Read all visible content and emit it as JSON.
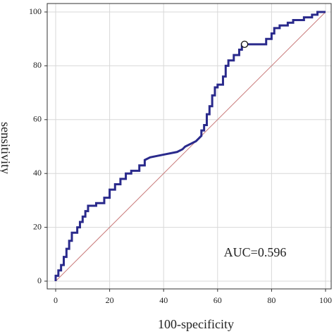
{
  "chart_data": {
    "type": "line",
    "xlabel": "100-specificity",
    "ylabel": "sensitivity",
    "annotation": "AUC=0.596",
    "color": "#2a2a8c",
    "reference_color": "#c97a7a",
    "grid": true,
    "xlim": [
      0,
      100
    ],
    "ylim": [
      0,
      100
    ],
    "xticks": [
      0,
      20,
      40,
      60,
      80,
      100
    ],
    "yticks": [
      0,
      20,
      40,
      60,
      80,
      100
    ],
    "x": [
      0,
      0,
      1,
      1,
      2,
      2,
      3,
      3,
      4,
      4,
      5,
      5,
      6,
      6,
      8,
      8,
      9,
      9,
      10,
      10,
      11,
      11,
      12,
      12,
      15,
      15,
      18,
      18,
      20,
      20,
      22,
      22,
      24,
      24,
      26,
      26,
      28,
      28,
      31,
      31,
      33,
      33,
      35,
      40,
      45,
      47,
      48,
      50,
      52,
      53,
      54,
      54,
      55,
      55,
      56,
      56,
      57,
      57,
      58,
      58,
      59,
      59,
      60,
      60,
      62,
      62,
      63,
      63,
      64,
      64,
      66,
      66,
      68,
      68,
      69,
      69,
      78,
      78,
      80,
      80,
      81,
      81,
      83,
      83,
      86,
      86,
      88,
      88,
      92,
      92,
      95,
      95,
      97,
      97,
      100
    ],
    "values": [
      0,
      2,
      2,
      4,
      4,
      6,
      6,
      9,
      9,
      12,
      12,
      15,
      15,
      18,
      18,
      20,
      20,
      22,
      22,
      24,
      24,
      26,
      26,
      28,
      28,
      29,
      29,
      31,
      31,
      34,
      34,
      36,
      36,
      38,
      38,
      40,
      40,
      41,
      41,
      43,
      43,
      45,
      46,
      47,
      48,
      49,
      50,
      51,
      52,
      53,
      54,
      56,
      56,
      58,
      58,
      62,
      62,
      65,
      65,
      69,
      69,
      72,
      72,
      73,
      73,
      76,
      76,
      80,
      80,
      82,
      82,
      84,
      84,
      86,
      86,
      88,
      88,
      90,
      90,
      92,
      92,
      94,
      94,
      95,
      95,
      96,
      96,
      97,
      97,
      98,
      98,
      99,
      99,
      100,
      100
    ],
    "marker": {
      "x": 70,
      "y": 88
    }
  }
}
